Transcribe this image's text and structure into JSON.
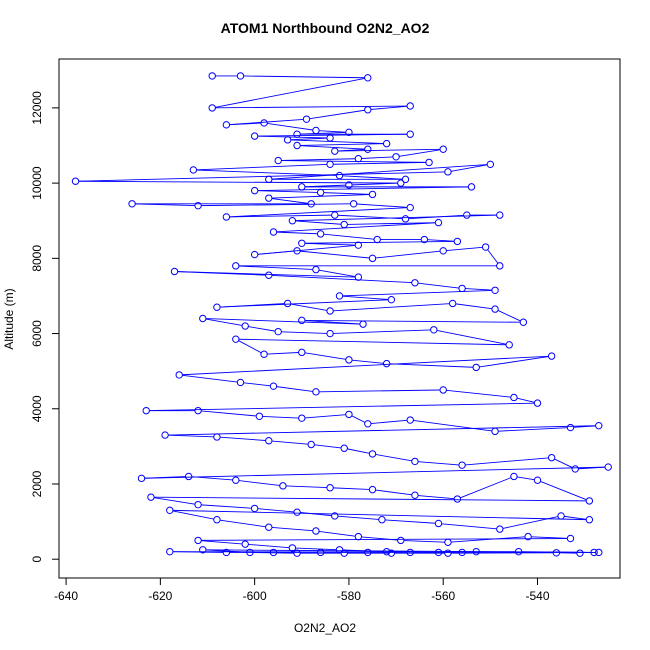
{
  "chart_data": {
    "type": "scatter",
    "title": "ATOM1 Northbound O2N2_AO2",
    "xlabel": "O2N2_AO2",
    "ylabel": "Altitude (m)",
    "xlim": [
      -641.5,
      -522.5
    ],
    "ylim": [
      -500,
      13300
    ],
    "xticks": [
      -640,
      -620,
      -600,
      -580,
      -560,
      -540
    ],
    "yticks": [
      0,
      2000,
      4000,
      6000,
      8000,
      10000,
      12000
    ],
    "grid": false,
    "legend": "none",
    "series_color": "#0000ff",
    "markers": "open-circle",
    "connected": true,
    "points": [
      [
        -609,
        12850
      ],
      [
        -603,
        12850
      ],
      [
        -576,
        12800
      ],
      [
        -609,
        12000
      ],
      [
        -567,
        12050
      ],
      [
        -576,
        11950
      ],
      [
        -589,
        11700
      ],
      [
        -606,
        11550
      ],
      [
        -598,
        11600
      ],
      [
        -587,
        11400
      ],
      [
        -580,
        11350
      ],
      [
        -591,
        11300
      ],
      [
        -567,
        11300
      ],
      [
        -600,
        11250
      ],
      [
        -584,
        11200
      ],
      [
        -593,
        11150
      ],
      [
        -572,
        11050
      ],
      [
        -591,
        11000
      ],
      [
        -576,
        10900
      ],
      [
        -583,
        10850
      ],
      [
        -560,
        10900
      ],
      [
        -570,
        10700
      ],
      [
        -578,
        10650
      ],
      [
        -595,
        10600
      ],
      [
        -563,
        10550
      ],
      [
        -584,
        10500
      ],
      [
        -613,
        10350
      ],
      [
        -582,
        10200
      ],
      [
        -568,
        10100
      ],
      [
        -597,
        10100
      ],
      [
        -550,
        10500
      ],
      [
        -559,
        10300
      ],
      [
        -638,
        10050
      ],
      [
        -569,
        10000
      ],
      [
        -580,
        9950
      ],
      [
        -590,
        9900
      ],
      [
        -554,
        9900
      ],
      [
        -600,
        9800
      ],
      [
        -586,
        9750
      ],
      [
        -575,
        9700
      ],
      [
        -597,
        9600
      ],
      [
        -588,
        9450
      ],
      [
        -626,
        9450
      ],
      [
        -612,
        9400
      ],
      [
        -579,
        9450
      ],
      [
        -567,
        9350
      ],
      [
        -606,
        9100
      ],
      [
        -583,
        9150
      ],
      [
        -568,
        9050
      ],
      [
        -555,
        9150
      ],
      [
        -548,
        9150
      ],
      [
        -592,
        9000
      ],
      [
        -581,
        8900
      ],
      [
        -561,
        8950
      ],
      [
        -596,
        8700
      ],
      [
        -586,
        8650
      ],
      [
        -574,
        8500
      ],
      [
        -564,
        8500
      ],
      [
        -557,
        8450
      ],
      [
        -590,
        8400
      ],
      [
        -578,
        8350
      ],
      [
        -600,
        8100
      ],
      [
        -591,
        8200
      ],
      [
        -575,
        8000
      ],
      [
        -560,
        8200
      ],
      [
        -551,
        8300
      ],
      [
        -548,
        7800
      ],
      [
        -604,
        7800
      ],
      [
        -587,
        7700
      ],
      [
        -578,
        7500
      ],
      [
        -617,
        7650
      ],
      [
        -597,
        7550
      ],
      [
        -566,
        7350
      ],
      [
        -556,
        7200
      ],
      [
        -549,
        7150
      ],
      [
        -582,
        7000
      ],
      [
        -571,
        6900
      ],
      [
        -608,
        6700
      ],
      [
        -593,
        6800
      ],
      [
        -584,
        6600
      ],
      [
        -558,
        6800
      ],
      [
        -549,
        6650
      ],
      [
        -543,
        6300
      ],
      [
        -590,
        6350
      ],
      [
        -577,
        6250
      ],
      [
        -611,
        6400
      ],
      [
        -602,
        6200
      ],
      [
        -595,
        6050
      ],
      [
        -584,
        6000
      ],
      [
        -562,
        6100
      ],
      [
        -546,
        5700
      ],
      [
        -604,
        5850
      ],
      [
        -598,
        5450
      ],
      [
        -590,
        5500
      ],
      [
        -580,
        5300
      ],
      [
        -572,
        5200
      ],
      [
        -553,
        5100
      ],
      [
        -537,
        5400
      ],
      [
        -616,
        4900
      ],
      [
        -603,
        4700
      ],
      [
        -596,
        4600
      ],
      [
        -587,
        4450
      ],
      [
        -560,
        4500
      ],
      [
        -545,
        4300
      ],
      [
        -540,
        4150
      ],
      [
        -623,
        3950
      ],
      [
        -612,
        3950
      ],
      [
        -599,
        3800
      ],
      [
        -590,
        3750
      ],
      [
        -580,
        3850
      ],
      [
        -576,
        3600
      ],
      [
        -567,
        3700
      ],
      [
        -549,
        3400
      ],
      [
        -533,
        3500
      ],
      [
        -527,
        3550
      ],
      [
        -619,
        3300
      ],
      [
        -608,
        3250
      ],
      [
        -597,
        3150
      ],
      [
        -588,
        3050
      ],
      [
        -581,
        2950
      ],
      [
        -575,
        2800
      ],
      [
        -566,
        2600
      ],
      [
        -556,
        2500
      ],
      [
        -537,
        2700
      ],
      [
        -532,
        2400
      ],
      [
        -525,
        2450
      ],
      [
        -624,
        2150
      ],
      [
        -614,
        2200
      ],
      [
        -604,
        2100
      ],
      [
        -594,
        1950
      ],
      [
        -584,
        1900
      ],
      [
        -575,
        1850
      ],
      [
        -566,
        1700
      ],
      [
        -557,
        1600
      ],
      [
        -545,
        2200
      ],
      [
        -540,
        2100
      ],
      [
        -529,
        1550
      ],
      [
        -622,
        1650
      ],
      [
        -612,
        1450
      ],
      [
        -600,
        1350
      ],
      [
        -591,
        1250
      ],
      [
        -583,
        1150
      ],
      [
        -573,
        1050
      ],
      [
        -561,
        950
      ],
      [
        -548,
        800
      ],
      [
        -535,
        1150
      ],
      [
        -529,
        1050
      ],
      [
        -618,
        1300
      ],
      [
        -608,
        1050
      ],
      [
        -597,
        850
      ],
      [
        -587,
        750
      ],
      [
        -578,
        600
      ],
      [
        -569,
        500
      ],
      [
        -559,
        450
      ],
      [
        -542,
        600
      ],
      [
        -533,
        550
      ],
      [
        -612,
        500
      ],
      [
        -602,
        400
      ],
      [
        -592,
        300
      ],
      [
        -582,
        250
      ],
      [
        -572,
        200
      ],
      [
        -561,
        180
      ],
      [
        -553,
        200
      ],
      [
        -527,
        180
      ],
      [
        -618,
        200
      ],
      [
        -606,
        180
      ],
      [
        -596,
        180
      ],
      [
        -586,
        180
      ],
      [
        -576,
        180
      ],
      [
        -567,
        180
      ],
      [
        -556,
        180
      ],
      [
        -544,
        200
      ],
      [
        -528,
        180
      ],
      [
        -611,
        250
      ],
      [
        -601,
        180
      ],
      [
        -591,
        160
      ],
      [
        -581,
        160
      ],
      [
        -571,
        160
      ],
      [
        -559,
        160
      ],
      [
        -536,
        170
      ],
      [
        -531,
        160
      ]
    ]
  }
}
